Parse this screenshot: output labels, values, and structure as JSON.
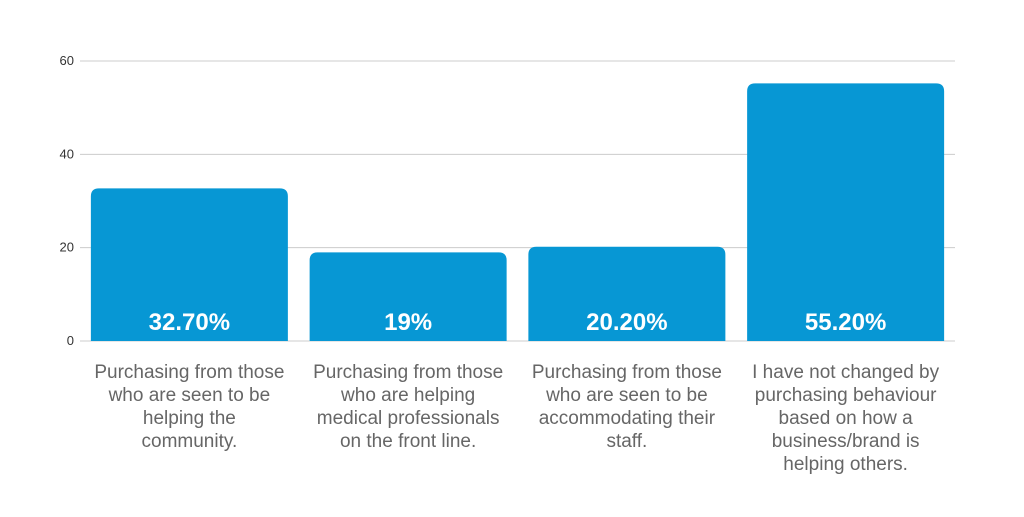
{
  "chart_data": {
    "type": "bar",
    "categories": [
      "Purchasing from those who are seen to be helping the community.",
      "Purchasing from those who are helping medical professionals on the front line.",
      "Purchasing from those who are seen to be accommodating their staff.",
      "I have not changed by purchasing behaviour based on how a business/brand is helping others."
    ],
    "category_lines": [
      [
        "Purchasing from those",
        "who are seen to be",
        "helping the",
        "community."
      ],
      [
        "Purchasing from those",
        "who are helping",
        "medical professionals",
        "on the front line."
      ],
      [
        "Purchasing from those",
        "who are seen to be",
        "accommodating their",
        "staff."
      ],
      [
        "I have not changed by",
        "purchasing behaviour",
        "based on how a",
        "business/brand is",
        "helping others."
      ]
    ],
    "values": [
      32.7,
      19,
      20.2,
      55.2
    ],
    "data_labels": [
      "32.70%",
      "19%",
      "20.20%",
      "55.20%"
    ],
    "ylim": [
      0,
      60
    ],
    "yticks": [
      0,
      20,
      40,
      60
    ],
    "ytick_labels": [
      "0",
      "20",
      "40",
      "60"
    ],
    "grid": true,
    "bar_color": "#0797d4",
    "title": "",
    "xlabel": "",
    "ylabel": ""
  }
}
